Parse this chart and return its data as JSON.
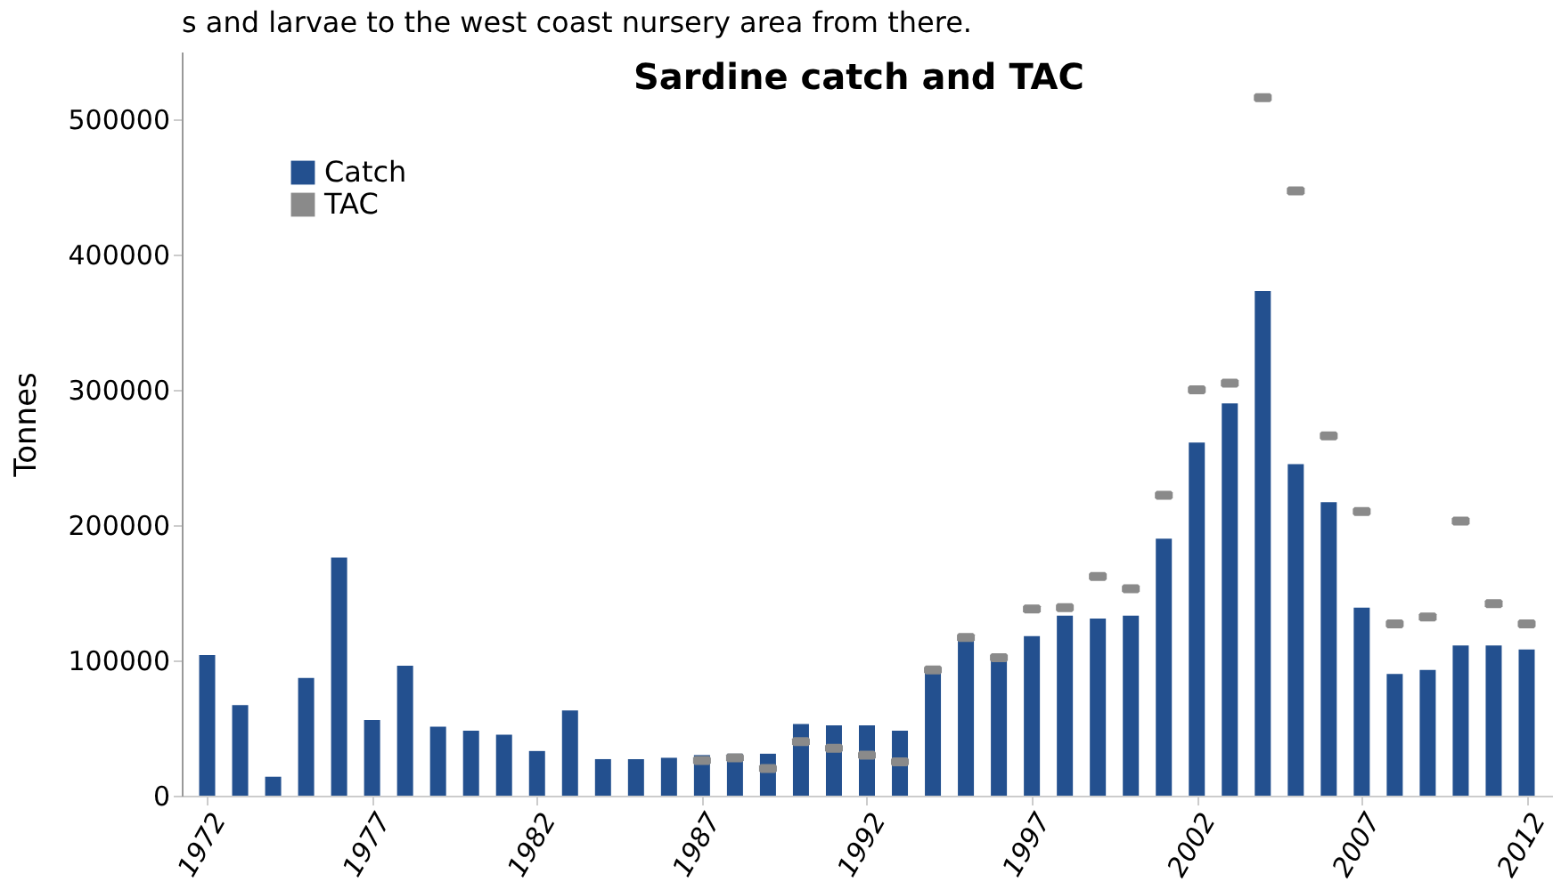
{
  "chart_data": {
    "type": "bar",
    "title": "Sardine catch and TAC",
    "ylabel": "Tonnes",
    "annotations": [
      "s and larvae to the west coast nursery area from there."
    ],
    "categories": [
      "1972",
      null,
      null,
      null,
      null,
      "1977",
      null,
      null,
      null,
      null,
      "1982",
      null,
      null,
      null,
      null,
      "1987",
      null,
      null,
      null,
      null,
      "1992",
      null,
      null,
      null,
      null,
      "1997",
      null,
      null,
      null,
      null,
      "2002",
      null,
      null,
      null,
      null,
      "2007",
      null,
      null,
      null,
      null,
      "2012"
    ],
    "series": [
      {
        "name": "Catch",
        "color": "#23508f",
        "values": [
          104000,
          67000,
          14000,
          87000,
          176000,
          56000,
          96000,
          51000,
          48000,
          45000,
          33000,
          63000,
          27000,
          27000,
          28000,
          30000,
          31000,
          31000,
          53000,
          52000,
          52000,
          48000,
          91000,
          116000,
          104000,
          118000,
          133000,
          131000,
          133000,
          190000,
          261000,
          290000,
          373000,
          245000,
          217000,
          139000,
          90000,
          93000,
          111000,
          111000,
          108000
        ]
      },
      {
        "name": "TAC",
        "type": "scatter",
        "color": "#8a8a8a",
        "values": [
          null,
          null,
          null,
          null,
          null,
          null,
          null,
          null,
          null,
          null,
          null,
          null,
          null,
          null,
          null,
          26000,
          28000,
          20000,
          40000,
          35000,
          30000,
          25000,
          93000,
          117000,
          102000,
          138000,
          139000,
          162000,
          153000,
          222000,
          300000,
          305000,
          516000,
          447000,
          266000,
          210000,
          127000,
          132000,
          203000,
          142000,
          127000
        ]
      }
    ],
    "ylim": [
      0,
      550000
    ],
    "yticks": [
      0,
      100000,
      200000,
      300000,
      400000,
      500000
    ],
    "grid": false,
    "legend": "top left"
  }
}
